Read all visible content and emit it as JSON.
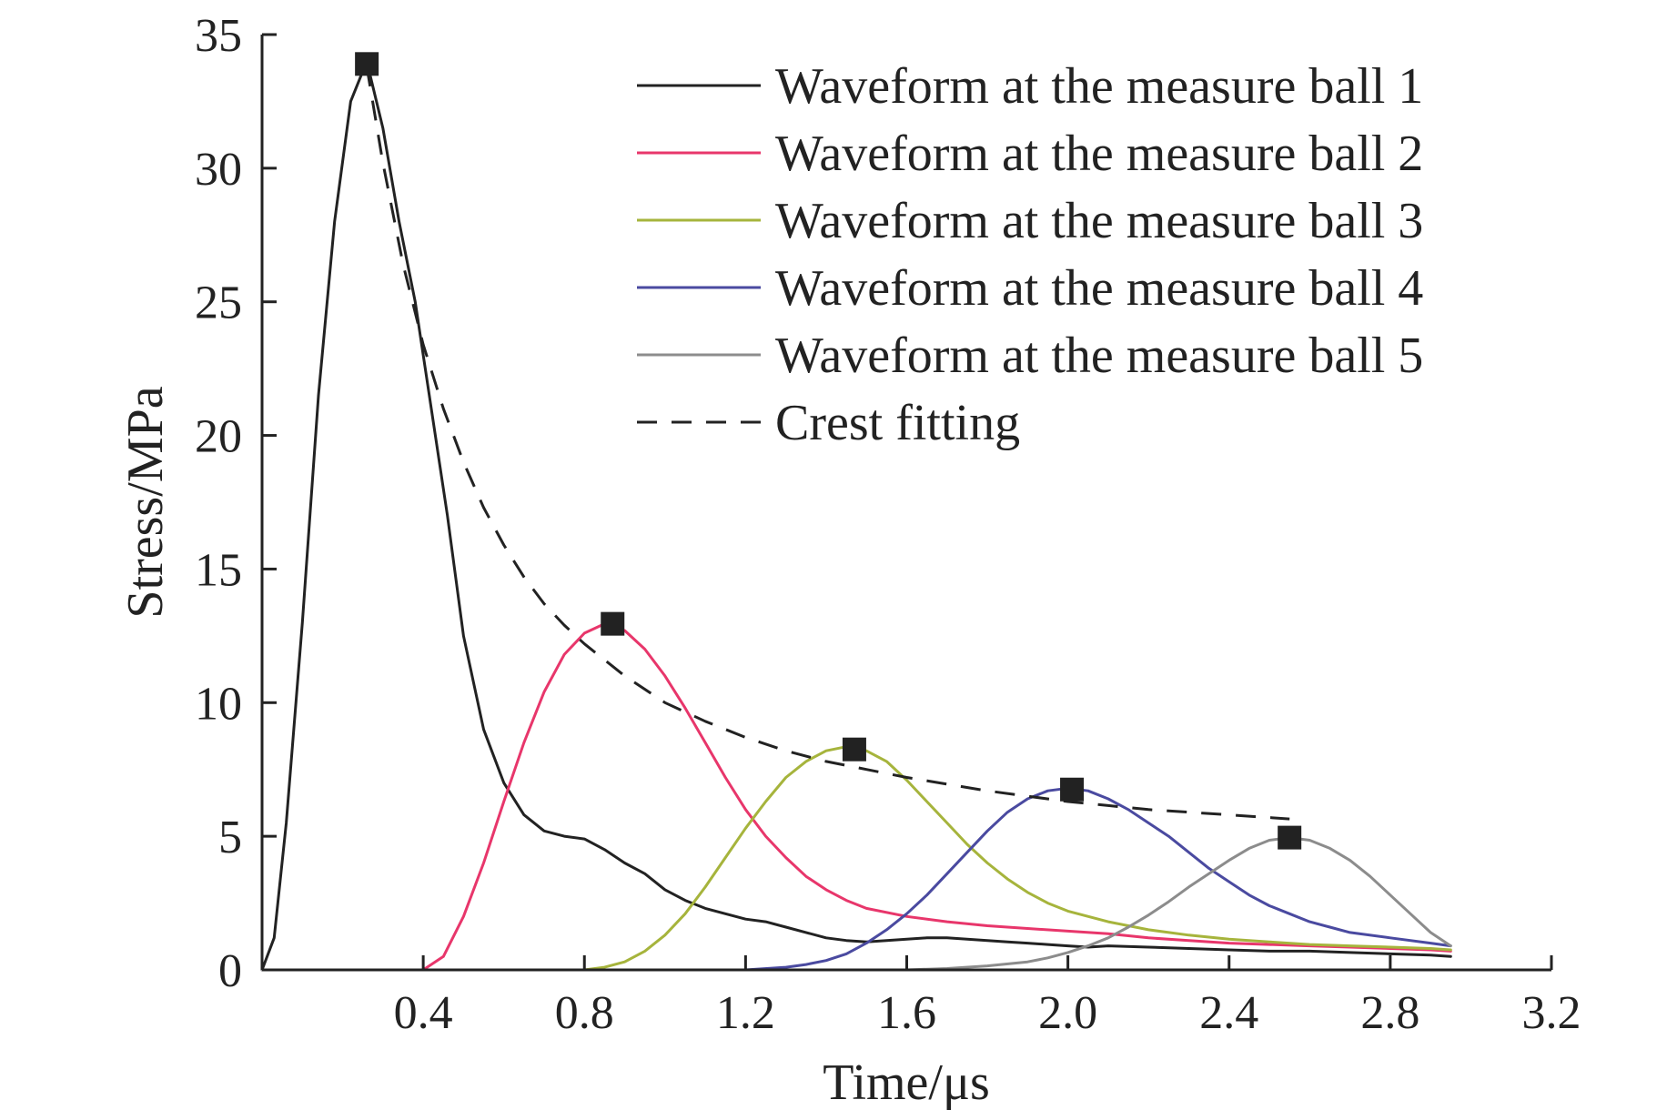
{
  "chart_data": {
    "type": "line",
    "xlabel": "Time/μs",
    "ylabel": "Stress/MPa",
    "xlim": [
      0,
      3.2
    ],
    "ylim": [
      0,
      35
    ],
    "x_ticks": [
      "0.4",
      "0.8",
      "1.2",
      "1.6",
      "2.0",
      "2.4",
      "2.8",
      "3.2"
    ],
    "x_tick_values": [
      0.4,
      0.8,
      1.2,
      1.6,
      2.0,
      2.4,
      2.8,
      3.2
    ],
    "y_ticks": [
      "0",
      "5",
      "10",
      "15",
      "20",
      "25",
      "30",
      "35"
    ],
    "y_tick_values": [
      0,
      5,
      10,
      15,
      20,
      25,
      30,
      35
    ],
    "grid": false,
    "legend_position": "top-right",
    "series": [
      {
        "name": "Waveform at the measure ball 1",
        "color": "#222222",
        "style": "solid",
        "x": [
          0.0,
          0.03,
          0.06,
          0.1,
          0.14,
          0.18,
          0.22,
          0.26,
          0.3,
          0.34,
          0.38,
          0.42,
          0.46,
          0.5,
          0.55,
          0.6,
          0.65,
          0.7,
          0.75,
          0.8,
          0.85,
          0.9,
          0.95,
          1.0,
          1.05,
          1.1,
          1.15,
          1.2,
          1.25,
          1.3,
          1.35,
          1.4,
          1.45,
          1.5,
          1.55,
          1.6,
          1.65,
          1.7,
          1.75,
          1.8,
          1.85,
          1.9,
          1.95,
          2.0,
          2.05,
          2.1,
          2.2,
          2.3,
          2.4,
          2.5,
          2.6,
          2.7,
          2.8,
          2.9,
          2.95
        ],
        "y": [
          0.0,
          1.2,
          5.5,
          13.0,
          21.5,
          28.0,
          32.5,
          34.0,
          31.5,
          28.0,
          25.0,
          21.0,
          17.0,
          12.5,
          9.0,
          7.0,
          5.8,
          5.2,
          5.0,
          4.9,
          4.5,
          4.0,
          3.6,
          3.0,
          2.6,
          2.3,
          2.1,
          1.9,
          1.8,
          1.6,
          1.4,
          1.2,
          1.1,
          1.05,
          1.1,
          1.15,
          1.2,
          1.2,
          1.15,
          1.1,
          1.05,
          1.0,
          0.95,
          0.9,
          0.85,
          0.9,
          0.85,
          0.8,
          0.75,
          0.7,
          0.7,
          0.65,
          0.6,
          0.55,
          0.5
        ]
      },
      {
        "name": "Waveform at the measure ball 2",
        "color": "#e8366b",
        "style": "solid",
        "x": [
          0.0,
          0.4,
          0.45,
          0.5,
          0.55,
          0.6,
          0.65,
          0.7,
          0.75,
          0.8,
          0.85,
          0.9,
          0.95,
          1.0,
          1.05,
          1.1,
          1.15,
          1.2,
          1.25,
          1.3,
          1.35,
          1.4,
          1.45,
          1.5,
          1.6,
          1.7,
          1.8,
          1.9,
          2.0,
          2.1,
          2.2,
          2.3,
          2.4,
          2.5,
          2.6,
          2.7,
          2.8,
          2.9,
          2.95
        ],
        "y": [
          0.0,
          0.0,
          0.5,
          2.0,
          4.0,
          6.3,
          8.5,
          10.4,
          11.8,
          12.6,
          12.95,
          12.7,
          12.0,
          11.0,
          9.8,
          8.5,
          7.2,
          6.0,
          5.0,
          4.2,
          3.5,
          3.0,
          2.6,
          2.3,
          2.0,
          1.8,
          1.65,
          1.55,
          1.45,
          1.35,
          1.2,
          1.1,
          1.0,
          0.95,
          0.9,
          0.85,
          0.8,
          0.75,
          0.7
        ]
      },
      {
        "name": "Waveform at the measure ball 3",
        "color": "#a6b43c",
        "style": "solid",
        "x": [
          0.0,
          0.8,
          0.85,
          0.9,
          0.95,
          1.0,
          1.05,
          1.1,
          1.15,
          1.2,
          1.25,
          1.3,
          1.35,
          1.4,
          1.45,
          1.5,
          1.55,
          1.6,
          1.65,
          1.7,
          1.75,
          1.8,
          1.85,
          1.9,
          1.95,
          2.0,
          2.1,
          2.2,
          2.3,
          2.4,
          2.5,
          2.6,
          2.7,
          2.8,
          2.9,
          2.95
        ],
        "y": [
          0.0,
          0.0,
          0.1,
          0.3,
          0.7,
          1.3,
          2.1,
          3.1,
          4.2,
          5.3,
          6.3,
          7.2,
          7.8,
          8.2,
          8.35,
          8.2,
          7.8,
          7.1,
          6.3,
          5.5,
          4.7,
          4.0,
          3.4,
          2.9,
          2.5,
          2.2,
          1.8,
          1.5,
          1.3,
          1.15,
          1.05,
          0.95,
          0.9,
          0.85,
          0.8,
          0.75
        ]
      },
      {
        "name": "Waveform at the measure ball 4",
        "color": "#4a4aa0",
        "style": "solid",
        "x": [
          0.0,
          1.2,
          1.3,
          1.35,
          1.4,
          1.45,
          1.5,
          1.55,
          1.6,
          1.65,
          1.7,
          1.75,
          1.8,
          1.85,
          1.9,
          1.95,
          2.0,
          2.05,
          2.1,
          2.15,
          2.2,
          2.25,
          2.3,
          2.35,
          2.4,
          2.45,
          2.5,
          2.55,
          2.6,
          2.65,
          2.7,
          2.8,
          2.9,
          2.95
        ],
        "y": [
          0.0,
          0.0,
          0.1,
          0.2,
          0.35,
          0.6,
          1.0,
          1.5,
          2.1,
          2.8,
          3.6,
          4.4,
          5.2,
          5.9,
          6.4,
          6.7,
          6.8,
          6.7,
          6.4,
          6.0,
          5.5,
          5.0,
          4.4,
          3.8,
          3.3,
          2.8,
          2.4,
          2.1,
          1.8,
          1.6,
          1.4,
          1.2,
          1.0,
          0.9
        ]
      },
      {
        "name": "Waveform at the measure ball 5",
        "color": "#8c8c8c",
        "style": "solid",
        "x": [
          0.0,
          1.6,
          1.7,
          1.8,
          1.9,
          1.95,
          2.0,
          2.05,
          2.1,
          2.15,
          2.2,
          2.25,
          2.3,
          2.35,
          2.4,
          2.45,
          2.5,
          2.55,
          2.6,
          2.65,
          2.7,
          2.75,
          2.8,
          2.85,
          2.9,
          2.95
        ],
        "y": [
          0.0,
          0.0,
          0.05,
          0.15,
          0.3,
          0.45,
          0.65,
          0.9,
          1.2,
          1.6,
          2.05,
          2.55,
          3.1,
          3.6,
          4.1,
          4.55,
          4.85,
          4.95,
          4.85,
          4.55,
          4.1,
          3.5,
          2.8,
          2.1,
          1.4,
          0.9
        ]
      },
      {
        "name": "Crest fitting",
        "color": "#222222",
        "style": "dashed",
        "x": [
          0.26,
          0.3,
          0.35,
          0.4,
          0.45,
          0.5,
          0.55,
          0.6,
          0.65,
          0.7,
          0.75,
          0.8,
          0.85,
          0.9,
          1.0,
          1.1,
          1.2,
          1.3,
          1.4,
          1.5,
          1.6,
          1.7,
          1.8,
          1.9,
          2.0,
          2.1,
          2.2,
          2.3,
          2.4,
          2.5,
          2.55
        ],
        "y": [
          33.8,
          30.2,
          26.4,
          23.4,
          21.0,
          19.0,
          17.3,
          15.9,
          14.7,
          13.7,
          12.9,
          12.2,
          11.6,
          11.0,
          10.0,
          9.3,
          8.7,
          8.2,
          7.8,
          7.5,
          7.2,
          6.95,
          6.7,
          6.5,
          6.3,
          6.15,
          6.0,
          5.9,
          5.8,
          5.7,
          5.65
        ]
      }
    ],
    "crest_markers": {
      "x": [
        0.26,
        0.87,
        1.47,
        2.01,
        2.55
      ],
      "y": [
        33.9,
        12.95,
        8.25,
        6.75,
        4.95
      ],
      "color": "#222222"
    }
  }
}
